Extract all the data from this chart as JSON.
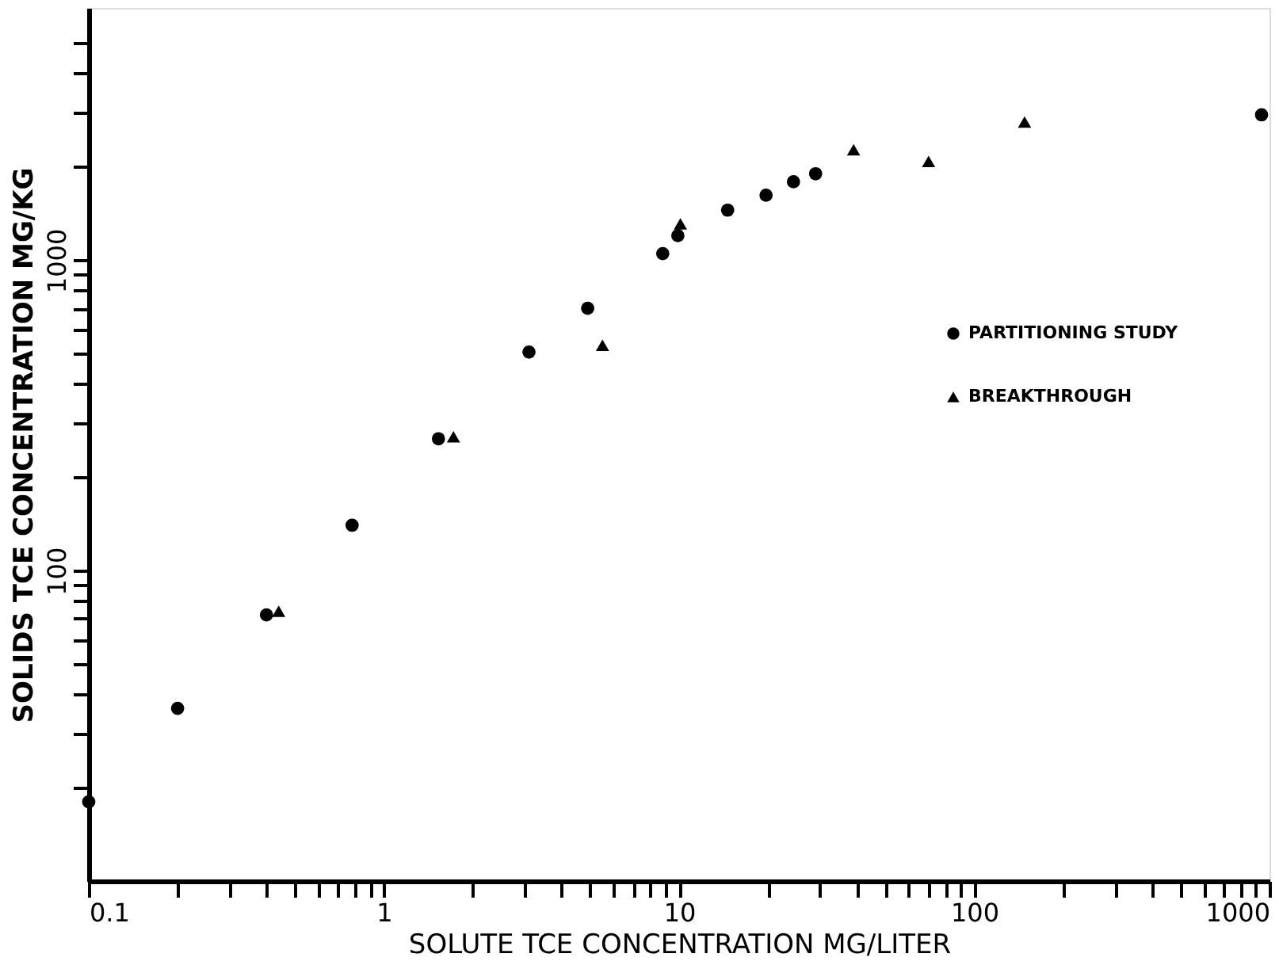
{
  "chart_data": {
    "type": "scatter",
    "xlabel": "SOLUTE TCE CONCENTRATION MG/LITER",
    "ylabel": "SOLIDS TCE CONCENTRATION MG/KG",
    "log": "xy",
    "grid": false,
    "legend": "right",
    "xlim": [
      0.1,
      1000
    ],
    "xticks": [
      {
        "value": 0.1,
        "label": "0.1"
      },
      {
        "value": 0.2,
        "label": null
      },
      {
        "value": 0.3,
        "label": null
      },
      {
        "value": 0.4,
        "label": null
      },
      {
        "value": 0.5,
        "label": null
      },
      {
        "value": 0.6,
        "label": null
      },
      {
        "value": 0.7,
        "label": null
      },
      {
        "value": 0.8,
        "label": null
      },
      {
        "value": 0.9,
        "label": null
      },
      1,
      {
        "value": 2,
        "label": null
      },
      {
        "value": 3,
        "label": null
      },
      {
        "value": 4,
        "label": null
      },
      {
        "value": 5,
        "label": null
      },
      {
        "value": 6,
        "label": null
      },
      {
        "value": 7,
        "label": null
      },
      {
        "value": 8,
        "label": null
      },
      {
        "value": 9,
        "label": null
      },
      10,
      {
        "value": 20,
        "label": null
      },
      {
        "value": 30,
        "label": null
      },
      {
        "value": 40,
        "label": null
      },
      {
        "value": 50,
        "label": null
      },
      {
        "value": 60,
        "label": null
      },
      {
        "value": 70,
        "label": null
      },
      {
        "value": 80,
        "label": null
      },
      {
        "value": 90,
        "label": null
      },
      100,
      {
        "value": 200,
        "label": null
      },
      {
        "value": 300,
        "label": null
      },
      {
        "value": 400,
        "label": null
      },
      {
        "value": 500,
        "label": null
      },
      {
        "value": 600,
        "label": null
      },
      {
        "value": 700,
        "label": null
      },
      {
        "value": 800,
        "label": null
      },
      {
        "value": 900,
        "label": null
      },
      1000
    ],
    "ylim": [
      10,
      6500
    ],
    "yticks": [
      {
        "value": 20,
        "label": null
      },
      {
        "value": 30,
        "label": null
      },
      {
        "value": 40,
        "label": null
      },
      {
        "value": 50,
        "label": null
      },
      {
        "value": 60,
        "label": null
      },
      {
        "value": 70,
        "label": null
      },
      {
        "value": 80,
        "label": null
      },
      {
        "value": 90,
        "label": null
      },
      100,
      {
        "value": 200,
        "label": null
      },
      {
        "value": 300,
        "label": null
      },
      {
        "value": 400,
        "label": null
      },
      {
        "value": 500,
        "label": null
      },
      {
        "value": 600,
        "label": null
      },
      {
        "value": 700,
        "label": null
      },
      {
        "value": 800,
        "label": null
      },
      {
        "value": 900,
        "label": null
      },
      1000,
      {
        "value": 2000,
        "label": null
      },
      {
        "value": 3000,
        "label": null
      },
      {
        "value": 4000,
        "label": null
      },
      {
        "value": 5000,
        "label": null
      }
    ],
    "series": [
      {
        "name": "PARTITIONING STUDY",
        "color": "#000000",
        "marker": "circle",
        "x": [
          0.1,
          0.2,
          0.4,
          0.78,
          1.53,
          3.1,
          4.9,
          8.8,
          9.9,
          14.6,
          19.7,
          24.4,
          29,
          940
        ],
        "values": [
          18,
          36,
          72,
          140,
          266,
          506,
          700,
          1050,
          1200,
          1450,
          1620,
          1790,
          1900,
          2940
        ]
      },
      {
        "name": "BREAKTHROUGH",
        "color": "#000000",
        "marker": "triangle",
        "x": [
          0.44,
          1.72,
          5.5,
          10.1,
          39,
          70,
          148
        ],
        "values": [
          74,
          270,
          532,
          1310,
          2270,
          2080,
          2790
        ]
      }
    ]
  }
}
